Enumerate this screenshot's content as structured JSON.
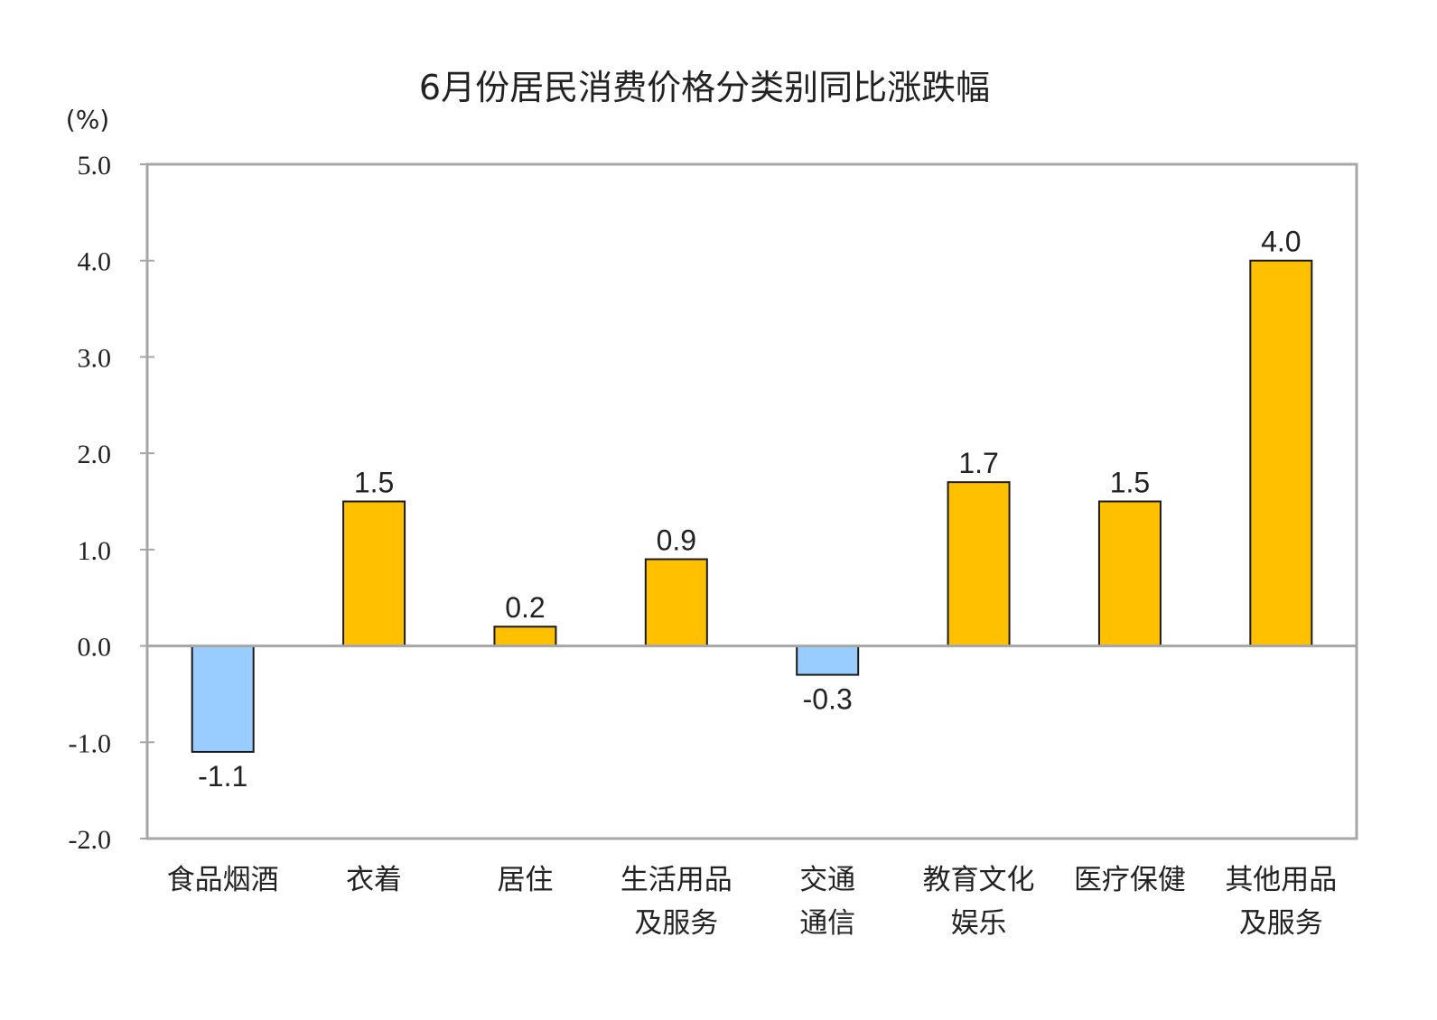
{
  "chart_data": {
    "type": "bar",
    "title": "6月份居民消费价格分类别同比涨跌幅",
    "ylabel": "(%)",
    "xlabel": "",
    "ylim": [
      -2.0,
      5.0
    ],
    "yticks": [
      "5.0",
      "4.0",
      "3.0",
      "2.0",
      "1.0",
      "0.0",
      "-1.0",
      "-2.0"
    ],
    "ytick_values": [
      5,
      4,
      3,
      2,
      1,
      0,
      -1,
      -2
    ],
    "categories": [
      [
        "食品烟酒"
      ],
      [
        "衣着"
      ],
      [
        "居住"
      ],
      [
        "生活用品",
        "及服务"
      ],
      [
        "交通",
        "通信"
      ],
      [
        "教育文化",
        "娱乐"
      ],
      [
        "医疗保健"
      ],
      [
        "其他用品",
        "及服务"
      ]
    ],
    "values": [
      -1.1,
      1.5,
      0.2,
      0.9,
      -0.3,
      1.7,
      1.5,
      4.0
    ],
    "data_labels": [
      "-1.1",
      "1.5",
      "0.2",
      "0.9",
      "-0.3",
      "1.7",
      "1.5",
      "4.0"
    ],
    "grid": false,
    "legend": "none",
    "colors": {
      "positive": "#FFC000",
      "negative": "#99CCFF",
      "axis": "#A6A6A6",
      "bar_outline": "#1a1a1a"
    }
  }
}
